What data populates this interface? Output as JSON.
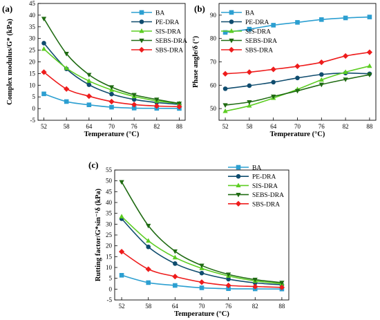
{
  "colors": {
    "BA": "#2c9fd1",
    "PE-DRA": "#0f4c6e",
    "SIS-DRA": "#5ccd22",
    "SEBS-DRA": "#1f6b12",
    "SBS-DRA": "#ee1c1c"
  },
  "chart_data": [
    {
      "panel": "(a)",
      "type": "line",
      "xlabel": "Temperature (°C)",
      "ylabel": "Complex  modulus/G* (kPa)",
      "x": [
        52,
        58,
        64,
        70,
        76,
        82,
        88
      ],
      "x_ticks": [
        "52",
        "58",
        "64",
        "70",
        "76",
        "82",
        "88"
      ],
      "ylim": [
        -5,
        45
      ],
      "y_ticks": [
        "-5",
        "0",
        "5",
        "10",
        "15",
        "20",
        "25",
        "30",
        "35",
        "40",
        "45"
      ],
      "legend_position": "top-right",
      "series": [
        {
          "name": "BA",
          "marker": "square",
          "values": [
            6.3,
            3.0,
            1.6,
            0.6,
            0.2,
            0.1,
            0.05
          ]
        },
        {
          "name": "PE-DRA",
          "marker": "circle",
          "values": [
            28.0,
            17.0,
            10.2,
            6.2,
            3.9,
            2.6,
            1.8
          ]
        },
        {
          "name": "SIS-DRA",
          "marker": "triangle-up",
          "values": [
            25.5,
            17.3,
            11.8,
            8.0,
            5.2,
            3.3,
            2.2
          ]
        },
        {
          "name": "SEBS-DRA",
          "marker": "triangle-down",
          "values": [
            38.5,
            23.5,
            14.5,
            9.2,
            5.9,
            3.9,
            2.2
          ]
        },
        {
          "name": "SBS-DRA",
          "marker": "diamond",
          "values": [
            15.6,
            8.4,
            5.3,
            3.0,
            1.7,
            1.1,
            0.8
          ]
        }
      ]
    },
    {
      "panel": "(b)",
      "type": "line",
      "xlabel": "Temperature (°C)",
      "ylabel": "Phase angle/δ (°)",
      "x": [
        52,
        58,
        64,
        70,
        76,
        82,
        88
      ],
      "x_ticks": [
        "52",
        "58",
        "64",
        "70",
        "76",
        "82",
        "88"
      ],
      "ylim": [
        45,
        95
      ],
      "y_ticks": [
        "50",
        "60",
        "70",
        "80",
        "90"
      ],
      "legend_position": "top-left",
      "series": [
        {
          "name": "BA",
          "marker": "square",
          "values": [
            82.6,
            84.0,
            85.7,
            86.9,
            88.1,
            88.8,
            89.2
          ]
        },
        {
          "name": "PE-DRA",
          "marker": "circle",
          "values": [
            58.5,
            59.8,
            61.3,
            63.1,
            64.6,
            65.2,
            64.9
          ]
        },
        {
          "name": "SIS-DRA",
          "marker": "triangle-up",
          "values": [
            48.9,
            51.2,
            54.5,
            58.2,
            62.3,
            65.6,
            68.2
          ]
        },
        {
          "name": "SEBS-DRA",
          "marker": "triangle-down",
          "values": [
            51.5,
            52.8,
            55.2,
            57.6,
            60.3,
            62.5,
            64.5
          ]
        },
        {
          "name": "SBS-DRA",
          "marker": "diamond",
          "values": [
            64.9,
            65.6,
            66.8,
            68.1,
            69.8,
            72.5,
            74.1
          ]
        }
      ]
    },
    {
      "panel": "(c)",
      "type": "line",
      "xlabel": "Temperature (°C)",
      "ylabel": "Rutting  factor/G*sin⁻¹δ (kPa)",
      "x": [
        52,
        58,
        64,
        70,
        76,
        82,
        88
      ],
      "x_ticks": [
        "52",
        "58",
        "64",
        "70",
        "76",
        "82",
        "88"
      ],
      "ylim": [
        -5,
        55
      ],
      "y_ticks": [
        "-5",
        "0",
        "5",
        "10",
        "15",
        "20",
        "25",
        "30",
        "35",
        "40",
        "45",
        "50",
        "55"
      ],
      "legend_position": "top-right",
      "series": [
        {
          "name": "BA",
          "marker": "square",
          "values": [
            6.4,
            3.0,
            1.7,
            0.6,
            0.2,
            0.1,
            0.05
          ]
        },
        {
          "name": "PE-DRA",
          "marker": "circle",
          "values": [
            32.5,
            19.5,
            11.8,
            7.4,
            4.6,
            2.9,
            2.0
          ]
        },
        {
          "name": "SIS-DRA",
          "marker": "triangle-up",
          "values": [
            33.5,
            22.3,
            14.6,
            9.6,
            6.1,
            3.8,
            2.5
          ]
        },
        {
          "name": "SEBS-DRA",
          "marker": "triangle-down",
          "values": [
            49.5,
            29.3,
            17.5,
            10.9,
            6.8,
            4.4,
            3.0
          ]
        },
        {
          "name": "SBS-DRA",
          "marker": "diamond",
          "values": [
            17.3,
            9.2,
            5.8,
            3.2,
            1.7,
            1.2,
            0.8
          ]
        }
      ]
    }
  ]
}
